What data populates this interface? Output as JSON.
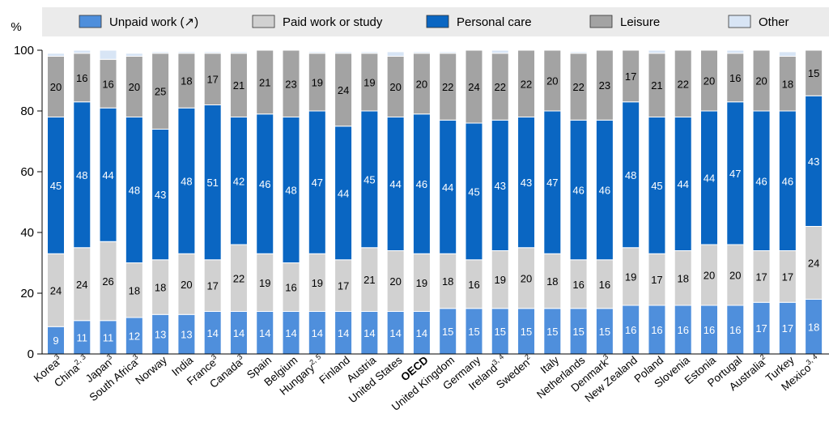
{
  "chart_data": {
    "type": "bar",
    "stacked": true,
    "ylabel": "%",
    "ylim": [
      0,
      100
    ],
    "yticks": [
      0,
      20,
      40,
      60,
      80,
      100
    ],
    "grid": false,
    "legend_position": "top",
    "categories": [
      {
        "name": "Korea",
        "sup": "3"
      },
      {
        "name": "China",
        "sup": "2, 3"
      },
      {
        "name": "Japan",
        "sup": "3"
      },
      {
        "name": "South Africa",
        "sup": "3"
      },
      {
        "name": "Norway",
        "sup": ""
      },
      {
        "name": "India",
        "sup": ""
      },
      {
        "name": "France",
        "sup": "3"
      },
      {
        "name": "Canada",
        "sup": "3"
      },
      {
        "name": "Spain",
        "sup": ""
      },
      {
        "name": "Belgium",
        "sup": ""
      },
      {
        "name": "Hungary",
        "sup": "2, 5"
      },
      {
        "name": "Finland",
        "sup": ""
      },
      {
        "name": "Austria",
        "sup": ""
      },
      {
        "name": "United States",
        "sup": ""
      },
      {
        "name": "OECD",
        "sup": "",
        "bold": true
      },
      {
        "name": "United Kingdom",
        "sup": ""
      },
      {
        "name": "Germany",
        "sup": ""
      },
      {
        "name": "Ireland",
        "sup": "3, 4"
      },
      {
        "name": "Sweden",
        "sup": "2"
      },
      {
        "name": "Italy",
        "sup": ""
      },
      {
        "name": "Netherlands",
        "sup": ""
      },
      {
        "name": "Denmark",
        "sup": "3"
      },
      {
        "name": "New Zealand",
        "sup": ""
      },
      {
        "name": "Poland",
        "sup": ""
      },
      {
        "name": "Slovenia",
        "sup": ""
      },
      {
        "name": "Estonia",
        "sup": ""
      },
      {
        "name": "Portugal",
        "sup": ""
      },
      {
        "name": "Australia",
        "sup": "2"
      },
      {
        "name": "Turkey",
        "sup": ""
      },
      {
        "name": "Mexico",
        "sup": "3, 4"
      }
    ],
    "series": [
      {
        "name": "Unpaid work (↗)",
        "color": "#4f8fdc",
        "label_color": "#ffffff",
        "values": [
          9,
          11,
          11,
          12,
          13,
          13,
          14,
          14,
          14,
          14,
          14,
          14,
          14,
          14,
          14,
          15,
          15,
          15,
          15,
          15,
          15,
          15,
          16,
          16,
          16,
          16,
          16,
          17,
          17,
          18
        ],
        "labels": [
          "9",
          "11",
          "11",
          "12",
          "13",
          "13",
          "14",
          "14",
          "14",
          "14",
          "14",
          "14",
          "14",
          "14",
          "14",
          "15",
          "15",
          "15",
          "15",
          "15",
          "15",
          "15",
          "16",
          "16",
          "16",
          "16",
          "16",
          "17",
          "17",
          "18"
        ]
      },
      {
        "name": "Paid work or study",
        "color": "#d1d1d1",
        "label_color": "#000000",
        "values": [
          24,
          24,
          26,
          18,
          18,
          20,
          17,
          22,
          19,
          16,
          19,
          17,
          21,
          20,
          19,
          18,
          16,
          19,
          20,
          18,
          16,
          16,
          19,
          17,
          18,
          20,
          20,
          17,
          17,
          24
        ],
        "labels": [
          "24",
          "24",
          "26",
          "18",
          "18",
          "20",
          "17",
          "22",
          "19",
          "16",
          "19",
          "17",
          "21",
          "20",
          "19",
          "18",
          "16",
          "19",
          "20",
          "18",
          "16",
          "16",
          "19",
          "17",
          "18",
          "20",
          "20",
          "17",
          "17",
          "24"
        ]
      },
      {
        "name": "Personal care",
        "color": "#0a66c2",
        "label_color": "#ffffff",
        "values": [
          45,
          48,
          44,
          48,
          43,
          48,
          51,
          42,
          46,
          48,
          47,
          44,
          45,
          44,
          46,
          44,
          45,
          43,
          43,
          47,
          46,
          46,
          48,
          45,
          44,
          44,
          47,
          46,
          46,
          43
        ],
        "labels": [
          "45",
          "48",
          "44",
          "48",
          "43",
          "48",
          "51",
          "42",
          "46",
          "48",
          "47",
          "44",
          "45",
          "44",
          "46",
          "44",
          "45",
          "43",
          "43",
          "47",
          "46",
          "46",
          "48",
          "45",
          "44",
          "44",
          "47",
          "46",
          "46",
          "43"
        ]
      },
      {
        "name": "Leisure",
        "color": "#a3a3a3",
        "label_color": "#000000",
        "values": [
          20,
          16,
          16,
          20,
          25,
          18,
          17,
          21,
          21,
          23,
          19,
          24,
          19,
          20,
          20,
          22,
          24,
          22,
          22,
          20,
          22,
          23,
          17,
          21,
          22,
          20,
          16,
          20,
          18,
          15
        ],
        "labels": [
          "20",
          "16",
          "16",
          "20",
          "25",
          "18",
          "17",
          "21",
          "21",
          "23",
          "19",
          "24",
          "19",
          "20",
          "20",
          "22",
          "24",
          "22",
          "22",
          "20",
          "22",
          "23",
          "17",
          "21",
          "22",
          "20",
          "16",
          "20",
          "18",
          "15"
        ]
      },
      {
        "name": "Other",
        "color": "#d8e5f5",
        "label_color": "#000000",
        "values": [
          1,
          1,
          3,
          1,
          0.5,
          0.5,
          0.5,
          0.5,
          0.5,
          0.5,
          0.5,
          0.5,
          0.5,
          1.5,
          0.5,
          0.5,
          0.5,
          1.5,
          0.5,
          0.5,
          0.5,
          0.5,
          0.5,
          1,
          0.5,
          0.5,
          1,
          1,
          1.5,
          0.5
        ],
        "labels": []
      }
    ]
  }
}
